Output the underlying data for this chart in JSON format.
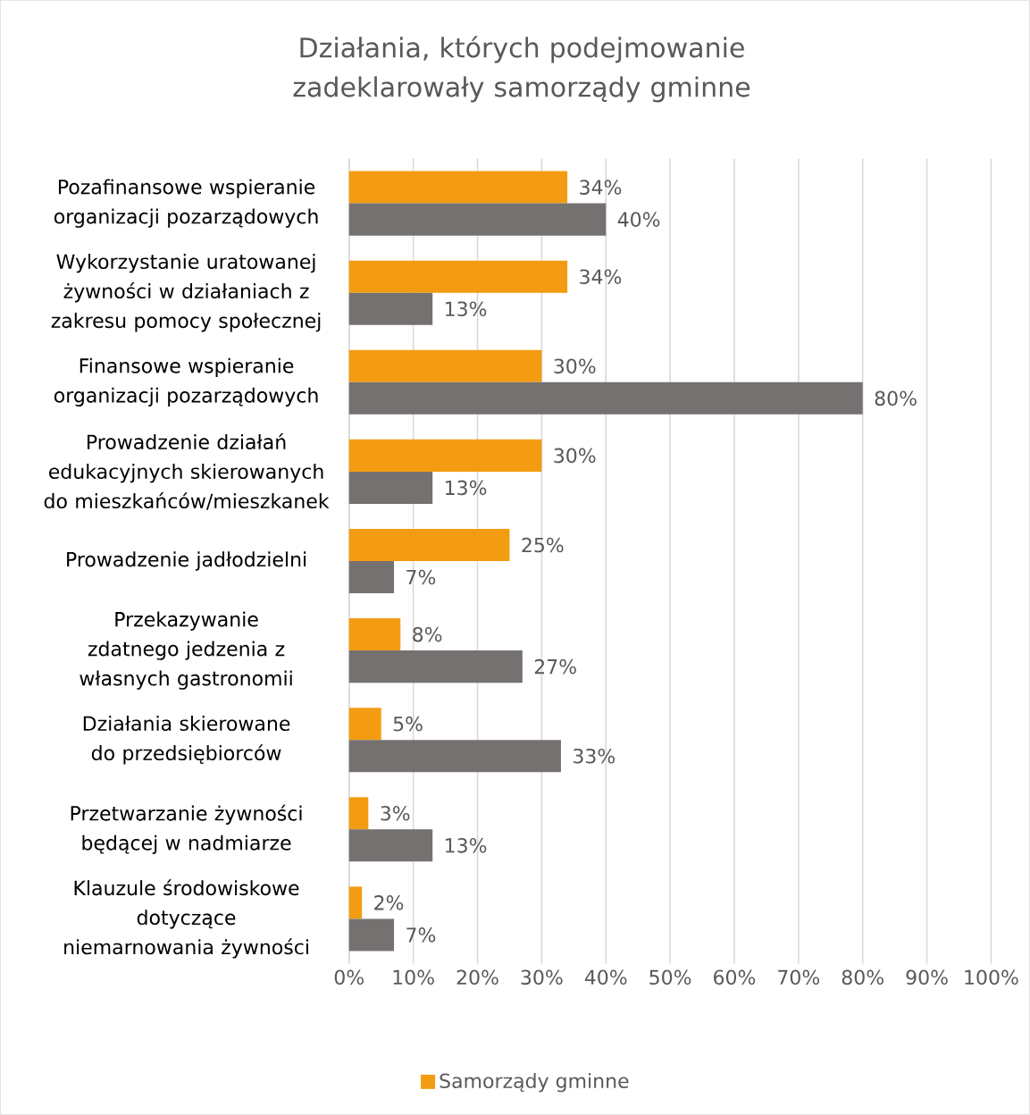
{
  "chart_data": {
    "type": "bar",
    "orientation": "horizontal",
    "title": "Działania, których podejmowanie zadeklarowały samorządy gminne",
    "categories": [
      "Pozafinansowe wspieranie organizacji pozarządowych",
      "Wykorzystanie uratowanej żywności w działaniach z zakresu pomocy społecznej",
      "Finansowe wspieranie organizacji pozarządowych",
      "Prowadzenie działań edukacyjnych skierowanych do mieszkańców/mieszkanek",
      "Prowadzenie jadłodzielni",
      "Przekazywanie zdatnego jedzenia z własnych gastronomii",
      "Działania skierowane do przedsiębiorców",
      "Przetwarzanie żywności będącej w nadmiarze",
      "Klauzule środowiskowe dotyczące niemarnowania żywności"
    ],
    "series": [
      {
        "name": "Samorządy gminne",
        "color": "#f39c12",
        "values": [
          34,
          34,
          30,
          30,
          25,
          8,
          5,
          3,
          2
        ],
        "value_labels": [
          "34%",
          "34%",
          "30%",
          "30%",
          "25%",
          "8%",
          "5%",
          "3%",
          "2%"
        ]
      },
      {
        "color": "#767171",
        "values": [
          40,
          13,
          80,
          13,
          7,
          27,
          33,
          13,
          7
        ],
        "value_labels": [
          "40%",
          "13%",
          "80%",
          "13%",
          "7%",
          "27%",
          "33%",
          "13%",
          "7%"
        ]
      }
    ],
    "xlim": [
      0,
      100
    ],
    "xticks": [
      {
        "value": 0,
        "label": "0%"
      },
      {
        "value": 10,
        "label": "10%"
      },
      {
        "value": 20,
        "label": "20%"
      },
      {
        "value": 30,
        "label": "30%"
      },
      {
        "value": 40,
        "label": "40%"
      },
      {
        "value": 50,
        "label": "50%"
      },
      {
        "value": 60,
        "label": "60%"
      },
      {
        "value": 70,
        "label": "70%"
      },
      {
        "value": 80,
        "label": "80%"
      },
      {
        "value": 90,
        "label": "90%"
      },
      {
        "value": 100,
        "label": "100%"
      }
    ],
    "grid": "x",
    "legend": "bottom"
  }
}
